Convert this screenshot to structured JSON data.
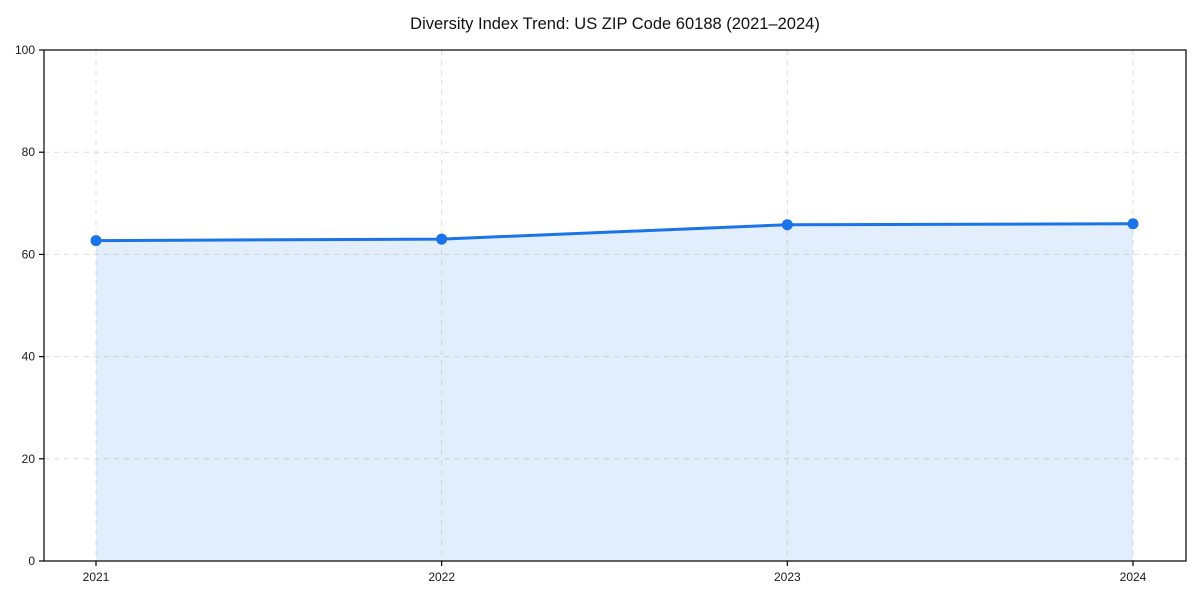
{
  "page": {
    "background_color": "#ffffff"
  },
  "chart_data": {
    "type": "area",
    "title": "Diversity Index Trend: US ZIP Code 60188 (2021–2024)",
    "x": [
      2021,
      2022,
      2023,
      2024
    ],
    "xticks": [
      "2021",
      "2022",
      "2023",
      "2024"
    ],
    "series": [
      {
        "name": "Diversity Index",
        "values": [
          62.7,
          63.0,
          65.8,
          66.0
        ]
      }
    ],
    "xlabel": "",
    "ylabel": "",
    "ylim": [
      0,
      100
    ],
    "yticks": [
      0,
      20,
      40,
      60,
      80,
      100
    ],
    "grid": true,
    "grid_style": "dashed",
    "legend_position": "none",
    "marker": "circle",
    "area_fill": true,
    "colors": {
      "line": "#1a73e8",
      "marker": "#1a73e8",
      "fill": "rgba(26,115,232,0.12)",
      "grid": "#dcdcdc",
      "spine": "#000000",
      "tick": "#000000",
      "tick_label": "#1a1a1a",
      "title": "#111111"
    }
  }
}
